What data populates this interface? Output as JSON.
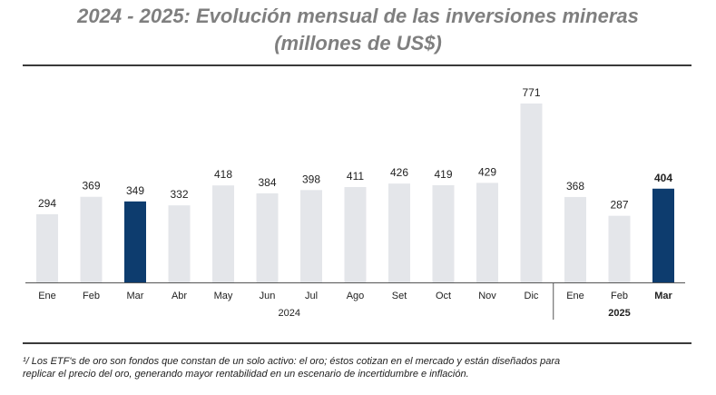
{
  "title": {
    "line1": "2024 - 2025: Evolución mensual de las inversiones mineras",
    "line2": "(millones de US$)"
  },
  "footnote": {
    "line1": "¹/  Los ETF's de oro son fondos que constan de un solo activo: el oro; éstos cotizan en el mercado y están diseñados para",
    "line2": "replicar el precio del oro, generando mayor rentabilidad en un escenario de incertidumbre e inflación."
  },
  "colors": {
    "bar_default": "#e4e6ea",
    "bar_highlight": "#0d3c6e",
    "text": "#222222",
    "axis": "#555555"
  },
  "chart_data": {
    "type": "bar",
    "categories": [
      "Ene",
      "Feb",
      "Mar",
      "Abr",
      "May",
      "Jun",
      "Jul",
      "Ago",
      "Set",
      "Oct",
      "Nov",
      "Dic",
      "Ene",
      "Feb",
      "Mar"
    ],
    "values": [
      294,
      369,
      349,
      332,
      418,
      384,
      398,
      411,
      426,
      419,
      429,
      771,
      368,
      287,
      404
    ],
    "highlighted": [
      false,
      false,
      true,
      false,
      false,
      false,
      false,
      false,
      false,
      false,
      false,
      false,
      false,
      false,
      true
    ],
    "bold_labels": [
      false,
      false,
      false,
      false,
      false,
      false,
      false,
      false,
      false,
      false,
      false,
      false,
      false,
      false,
      true
    ],
    "groups": [
      {
        "label": "2024",
        "start": 0,
        "end": 11,
        "bold": false
      },
      {
        "label": "2025",
        "start": 12,
        "end": 14,
        "bold": true
      }
    ],
    "ylim": [
      0,
      800
    ],
    "grid": false,
    "legend": "none"
  }
}
